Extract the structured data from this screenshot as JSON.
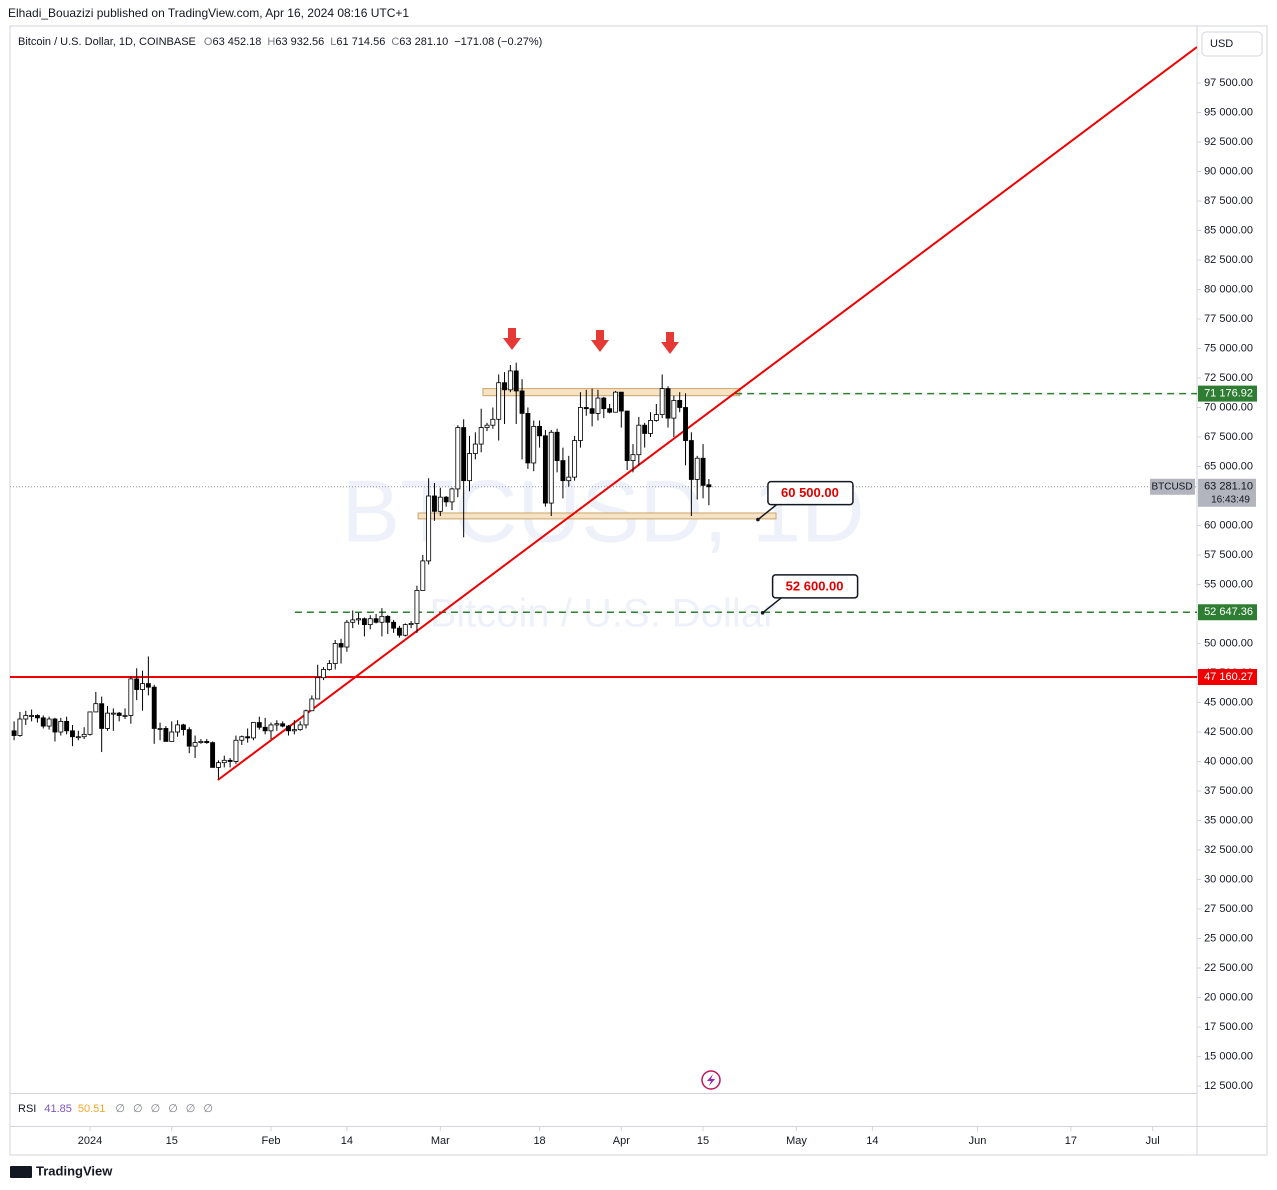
{
  "header": {
    "publisher": "Elhadi_Bouazizi published on TradingView.com, Apr 16, 2024 08:16 UTC+1",
    "currency_button": "USD",
    "brand": "TradingView"
  },
  "chart_data": {
    "type": "candlestick",
    "legend_title": "Bitcoin / U.S. Dollar, 1D, COINBASE",
    "ohlc_letters": [
      "O",
      "H",
      "L",
      "C"
    ],
    "last_labels": [
      "63 452.18",
      "63 932.56",
      "61 714.56",
      "63 281.10"
    ],
    "change": "−171.08 (−0.27%)",
    "watermark": "BTCUSD, 1D",
    "watermark_sub": "Bitcoin / U.S. Dollar",
    "symbol": "BTCUSD",
    "countdown": "16:43:49",
    "up_color": "#ffffff",
    "down_color": "#000000",
    "wick_color": "#000000",
    "xlim": [
      -13.7,
      189.6
    ],
    "xticks": [
      {
        "value": 0,
        "label": "2024"
      },
      {
        "value": 14,
        "label": "15"
      },
      {
        "value": 31,
        "label": "Feb"
      },
      {
        "value": 44,
        "label": "14"
      },
      {
        "value": 60,
        "label": "Mar"
      },
      {
        "value": 77,
        "label": "18"
      },
      {
        "value": 91,
        "label": "Apr"
      },
      {
        "value": 105,
        "label": "15"
      },
      {
        "value": 121,
        "label": "May"
      },
      {
        "value": 134,
        "label": "14"
      },
      {
        "value": 152,
        "label": "Jun"
      },
      {
        "value": 168,
        "label": "17"
      },
      {
        "value": 182,
        "label": "Jul"
      }
    ],
    "ylim": [
      11907,
      102330
    ],
    "yticks": [
      {
        "value": 97500,
        "label": "97 500.00"
      },
      {
        "value": 95000,
        "label": "95 000.00"
      },
      {
        "value": 92500,
        "label": "92 500.00"
      },
      {
        "value": 90000,
        "label": "90 000.00"
      },
      {
        "value": 87500,
        "label": "87 500.00"
      },
      {
        "value": 85000,
        "label": "85 000.00"
      },
      {
        "value": 82500,
        "label": "82 500.00"
      },
      {
        "value": 80000,
        "label": "80 000.00"
      },
      {
        "value": 77500,
        "label": "77 500.00"
      },
      {
        "value": 75000,
        "label": "75 000.00"
      },
      {
        "value": 72500,
        "label": "72 500.00"
      },
      {
        "value": 70000,
        "label": "70 000.00"
      },
      {
        "value": 67500,
        "label": "67 500.00"
      },
      {
        "value": 65000,
        "label": "65 000.00"
      },
      {
        "value": 62500,
        "label": "62 500.00"
      },
      {
        "value": 60000,
        "label": "60 000.00"
      },
      {
        "value": 57500,
        "label": "57 500.00"
      },
      {
        "value": 55000,
        "label": "55 000.00"
      },
      {
        "value": 52500,
        "label": "52 500.00"
      },
      {
        "value": 50000,
        "label": "50 000.00"
      },
      {
        "value": 47500,
        "label": "47 500.00"
      },
      {
        "value": 45000,
        "label": "45 000.00"
      },
      {
        "value": 42500,
        "label": "42 500.00"
      },
      {
        "value": 40000,
        "label": "40 000.00"
      },
      {
        "value": 37500,
        "label": "37 500.00"
      },
      {
        "value": 35000,
        "label": "35 000.00"
      },
      {
        "value": 32500,
        "label": "32 500.00"
      },
      {
        "value": 30000,
        "label": "30 000.00"
      },
      {
        "value": 27500,
        "label": "27 500.00"
      },
      {
        "value": 25000,
        "label": "25 000.00"
      },
      {
        "value": 22500,
        "label": "22 500.00"
      },
      {
        "value": 20000,
        "label": "20 000.00"
      },
      {
        "value": 17500,
        "label": "17 500.00"
      },
      {
        "value": 15000,
        "label": "15 000.00"
      },
      {
        "value": 12500,
        "label": "12 500.00"
      }
    ],
    "grid": false,
    "x": [
      -13,
      -12,
      -11,
      -10,
      -9,
      -8,
      -7,
      -6,
      -5,
      -4,
      -3,
      -2,
      -1,
      0,
      1,
      2,
      3,
      4,
      5,
      6,
      7,
      8,
      9,
      10,
      11,
      12,
      13,
      14,
      15,
      16,
      17,
      18,
      19,
      20,
      21,
      22,
      23,
      24,
      25,
      26,
      27,
      28,
      29,
      30,
      31,
      32,
      33,
      34,
      35,
      36,
      37,
      38,
      39,
      40,
      41,
      42,
      43,
      44,
      45,
      46,
      47,
      48,
      49,
      50,
      51,
      52,
      53,
      54,
      55,
      56,
      57,
      58,
      59,
      60,
      61,
      62,
      63,
      64,
      65,
      66,
      67,
      68,
      69,
      70,
      71,
      72,
      73,
      74,
      75,
      76,
      77,
      78,
      79,
      80,
      81,
      82,
      83,
      84,
      85,
      86,
      87,
      88,
      89,
      90,
      91,
      92,
      93,
      94,
      95,
      96,
      97,
      98,
      99,
      100,
      101,
      102,
      103,
      104,
      105,
      106
    ],
    "ohlc": [
      [
        42600,
        43400,
        41800,
        42200
      ],
      [
        42200,
        44200,
        42100,
        43600
      ],
      [
        43600,
        44300,
        43100,
        43900
      ],
      [
        43900,
        44400,
        43400,
        43900
      ],
      [
        43900,
        44000,
        43300,
        43700
      ],
      [
        43700,
        43900,
        42800,
        43000
      ],
      [
        43000,
        43800,
        42700,
        43600
      ],
      [
        43600,
        43700,
        41700,
        42500
      ],
      [
        42500,
        43700,
        42200,
        43400
      ],
      [
        43400,
        43800,
        42300,
        42600
      ],
      [
        42600,
        43100,
        41300,
        42100
      ],
      [
        42100,
        42600,
        41800,
        42100
      ],
      [
        42100,
        42900,
        41900,
        42300
      ],
      [
        42300,
        44200,
        42200,
        44200
      ],
      [
        44200,
        45900,
        44200,
        44900
      ],
      [
        44900,
        45500,
        40800,
        42800
      ],
      [
        42800,
        44700,
        42600,
        44100
      ],
      [
        44100,
        44500,
        42600,
        44100
      ],
      [
        44100,
        44200,
        43400,
        43900
      ],
      [
        43900,
        44500,
        43600,
        43900
      ],
      [
        43900,
        47200,
        43200,
        47000
      ],
      [
        47000,
        47900,
        45200,
        46100
      ],
      [
        46100,
        47700,
        44300,
        46600
      ],
      [
        46600,
        48900,
        45600,
        46300
      ],
      [
        46300,
        46500,
        41500,
        42800
      ],
      [
        42800,
        43300,
        41800,
        42800
      ],
      [
        42800,
        43000,
        41700,
        41700
      ],
      [
        41700,
        43400,
        41700,
        42500
      ],
      [
        42500,
        43500,
        42100,
        43100
      ],
      [
        43100,
        43200,
        42200,
        42700
      ],
      [
        42700,
        42900,
        40700,
        41300
      ],
      [
        41300,
        42200,
        40300,
        41600
      ],
      [
        41600,
        41900,
        41500,
        41700
      ],
      [
        41700,
        41900,
        41500,
        41600
      ],
      [
        41600,
        41700,
        39500,
        39500
      ],
      [
        39500,
        40100,
        38500,
        39900
      ],
      [
        39900,
        40500,
        39500,
        40100
      ],
      [
        40100,
        40300,
        39500,
        40000
      ],
      [
        40000,
        42200,
        39800,
        41800
      ],
      [
        41800,
        42200,
        41400,
        42100
      ],
      [
        42100,
        42800,
        41600,
        42000
      ],
      [
        42000,
        43300,
        41800,
        43300
      ],
      [
        43300,
        43800,
        42700,
        42900
      ],
      [
        42900,
        43700,
        42300,
        42600
      ],
      [
        42600,
        43300,
        41900,
        43100
      ],
      [
        43100,
        43500,
        42600,
        43200
      ],
      [
        43200,
        43400,
        42900,
        43000
      ],
      [
        43000,
        43100,
        42200,
        42600
      ],
      [
        42600,
        43500,
        42300,
        42700
      ],
      [
        42700,
        43400,
        42600,
        43100
      ],
      [
        43100,
        44400,
        42800,
        44300
      ],
      [
        44300,
        45600,
        44300,
        45300
      ],
      [
        45300,
        48200,
        45300,
        47100
      ],
      [
        47100,
        48000,
        46900,
        47800
      ],
      [
        47800,
        48600,
        47700,
        48300
      ],
      [
        48300,
        50300,
        47800,
        50000
      ],
      [
        50000,
        50400,
        48300,
        49700
      ],
      [
        49700,
        52000,
        49300,
        51800
      ],
      [
        51800,
        52800,
        51300,
        52000
      ],
      [
        52000,
        52600,
        51600,
        52100
      ],
      [
        52100,
        52200,
        50600,
        51600
      ],
      [
        51600,
        52400,
        51200,
        52100
      ],
      [
        52100,
        52500,
        51700,
        51800
      ],
      [
        51800,
        53000,
        50600,
        52300
      ],
      [
        52300,
        52400,
        50800,
        51800
      ],
      [
        51800,
        52000,
        50900,
        51300
      ],
      [
        51300,
        51500,
        50500,
        50700
      ],
      [
        50700,
        51700,
        50600,
        51600
      ],
      [
        51600,
        51900,
        51300,
        51700
      ],
      [
        51700,
        54900,
        50900,
        54500
      ],
      [
        54500,
        57500,
        54500,
        57000
      ],
      [
        57000,
        64000,
        56700,
        62500
      ],
      [
        62500,
        63600,
        60400,
        61200
      ],
      [
        61200,
        63200,
        60800,
        62400
      ],
      [
        62400,
        62500,
        61600,
        62000
      ],
      [
        62000,
        63200,
        61300,
        63100
      ],
      [
        63100,
        68500,
        62400,
        68300
      ],
      [
        68300,
        69000,
        59000,
        63800
      ],
      [
        63800,
        67600,
        62900,
        66100
      ],
      [
        66100,
        67900,
        65600,
        66900
      ],
      [
        66900,
        69900,
        66200,
        68300
      ],
      [
        68300,
        68700,
        68000,
        68500
      ],
      [
        68500,
        70000,
        68200,
        69000
      ],
      [
        69000,
        72800,
        67200,
        72100
      ],
      [
        72100,
        73000,
        68600,
        71500
      ],
      [
        71500,
        73600,
        71300,
        73100
      ],
      [
        73100,
        73800,
        68600,
        71400
      ],
      [
        71400,
        72400,
        65600,
        69500
      ],
      [
        69500,
        70000,
        64800,
        65300
      ],
      [
        65300,
        68900,
        64600,
        68400
      ],
      [
        68400,
        68900,
        66600,
        67600
      ],
      [
        67600,
        68100,
        61600,
        61900
      ],
      [
        61900,
        68100,
        60800,
        67900
      ],
      [
        67900,
        68200,
        64500,
        65500
      ],
      [
        65500,
        66600,
        62300,
        63800
      ],
      [
        63800,
        65900,
        63300,
        64100
      ],
      [
        64100,
        67600,
        63800,
        67200
      ],
      [
        67200,
        71300,
        66600,
        70000
      ],
      [
        70000,
        71500,
        69300,
        69900
      ],
      [
        69900,
        71600,
        68400,
        69500
      ],
      [
        69500,
        71500,
        68900,
        70800
      ],
      [
        70800,
        70900,
        69100,
        69900
      ],
      [
        69900,
        70300,
        69500,
        69600
      ],
      [
        69600,
        71400,
        69600,
        71300
      ],
      [
        71300,
        71300,
        68300,
        69700
      ],
      [
        69700,
        69700,
        64700,
        65500
      ],
      [
        65500,
        66900,
        64500,
        66000
      ],
      [
        66000,
        69200,
        65100,
        68500
      ],
      [
        68500,
        68700,
        66600,
        67800
      ],
      [
        67800,
        69600,
        67500,
        68900
      ],
      [
        68900,
        70300,
        68800,
        69400
      ],
      [
        69400,
        72800,
        69100,
        71600
      ],
      [
        71600,
        71800,
        68300,
        69100
      ],
      [
        69100,
        71000,
        67500,
        70600
      ],
      [
        70600,
        71300,
        69600,
        70000
      ],
      [
        70000,
        71200,
        65100,
        67200
      ],
      [
        67200,
        67900,
        60800,
        63900
      ],
      [
        63900,
        65900,
        62200,
        65700
      ],
      [
        65700,
        66900,
        62300,
        63400
      ],
      [
        63452.18,
        63932.56,
        61714.56,
        63281.1
      ]
    ],
    "last_price": {
      "value": 63281.1,
      "label": "63 281.10"
    },
    "levels": [
      {
        "value": 71176.92,
        "label": "71 176.92",
        "color": "#2e7d32",
        "dashed": true,
        "from": 110.5
      },
      {
        "value": 52647.36,
        "label": "52 647.36",
        "color": "#2e7d32",
        "dashed": true,
        "from": 35.1
      },
      {
        "value": 47160.27,
        "label": "47 160.27",
        "color": "#f00000",
        "dashed": false
      }
    ],
    "trendline": {
      "x": [
        21.9,
        189.6
      ],
      "y": [
        38432,
        100551
      ],
      "color": "#f00000"
    },
    "zones": [
      {
        "x": [
          67.3,
          111.3
        ],
        "y": [
          71000,
          71600
        ],
        "fill": "#f7e3c4",
        "stroke": "#c9a46a"
      },
      {
        "x": [
          56.2,
          117.5
        ],
        "y": [
          60560,
          61060
        ],
        "fill": "#f7e3c4",
        "stroke": "#c9a46a"
      }
    ],
    "callouts": [
      {
        "x": 114.4,
        "value": 60500,
        "label": "60 500.00"
      },
      {
        "x": 115.2,
        "value": 52600,
        "label": "52 600.00"
      }
    ],
    "rsi": {
      "name": "RSI",
      "value": {
        "value": 41.85,
        "label": "41.85"
      },
      "average": {
        "value": 50.51,
        "label": "50.51"
      },
      "value_color": "#7e57c2",
      "average_color": "#f9a825",
      "empty": [
        "∅",
        "∅",
        "∅",
        "∅",
        "∅",
        "∅"
      ]
    }
  }
}
